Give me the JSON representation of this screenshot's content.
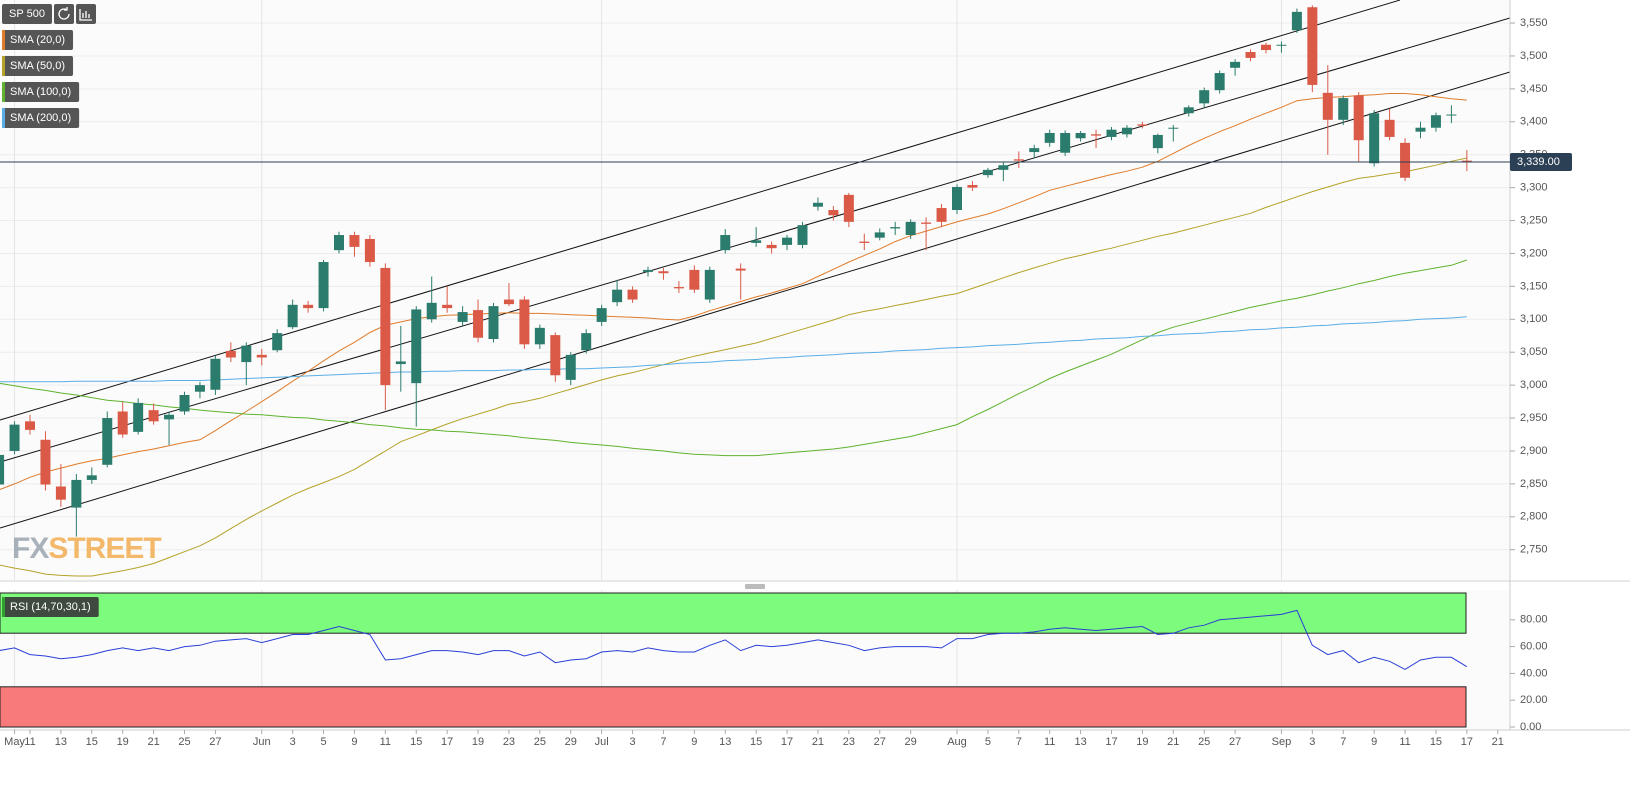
{
  "chart_data": [
    {
      "type": "candlestick",
      "title": "SP 500",
      "categories": [
        null,
        "May",
        "11",
        null,
        "13",
        null,
        "15",
        null,
        "19",
        null,
        "21",
        null,
        "25",
        null,
        "27",
        null,
        null,
        "Jun",
        null,
        "3",
        null,
        "5",
        null,
        "9",
        null,
        "11",
        null,
        "15",
        null,
        "17",
        null,
        "19",
        null,
        "23",
        null,
        "25",
        null,
        "29",
        null,
        "Jul",
        null,
        "3",
        null,
        "7",
        null,
        "9",
        null,
        "13",
        null,
        "15",
        null,
        "17",
        null,
        "21",
        null,
        "23",
        null,
        "27",
        null,
        "29",
        null,
        null,
        "Aug",
        null,
        "5",
        null,
        "7",
        null,
        "11",
        null,
        "13",
        null,
        "17",
        null,
        "19",
        null,
        "21",
        null,
        "25",
        null,
        "27",
        null,
        null,
        "Sep",
        null,
        "3",
        null,
        "7",
        null,
        "9",
        null,
        "11",
        null,
        "15",
        null,
        "17",
        null,
        "21"
      ],
      "open": [
        2849,
        2900,
        2945,
        2917,
        2846,
        2814,
        2856,
        2879,
        2960,
        2929,
        2962,
        2948,
        2960,
        2990,
        2993,
        3052,
        3035,
        3046,
        3053,
        3088,
        3122,
        3117,
        3205,
        3228,
        3222,
        3178,
        3032,
        3003,
        3100,
        3122,
        3096,
        3114,
        3070,
        3130,
        3130,
        3062,
        3076,
        3008,
        3053,
        3096,
        3126,
        3145,
        3172,
        3173,
        3149,
        3175,
        3130,
        3205,
        3177,
        3216,
        3213,
        3213,
        3213,
        3271,
        3266,
        3289,
        3218,
        3224,
        3238,
        3228,
        3247,
        3269,
        3266,
        3304,
        3319,
        3327,
        3343,
        3354,
        3368,
        3353,
        3375,
        3381,
        3377,
        3381,
        3396,
        3360,
        3390,
        3413,
        3428,
        3448,
        3482,
        3506,
        3517,
        3516,
        3539,
        3574,
        3444,
        3403,
        3440,
        3337,
        3403,
        3368,
        3385,
        3391,
        3410,
        3341,
        null,
        null
      ],
      "high": [
        2905,
        2945,
        2955,
        2930,
        2880,
        2865,
        2875,
        2960,
        2975,
        2980,
        2972,
        2960,
        2990,
        3005,
        3045,
        3065,
        3065,
        3055,
        3085,
        3130,
        3128,
        3190,
        3233,
        3233,
        3228,
        3185,
        3090,
        3120,
        3165,
        3150,
        3120,
        3130,
        3125,
        3155,
        3135,
        3092,
        3080,
        3050,
        3085,
        3122,
        3160,
        3150,
        3180,
        3178,
        3158,
        3182,
        3180,
        3237,
        3185,
        3240,
        3218,
        3228,
        3248,
        3285,
        3272,
        3292,
        3230,
        3238,
        3248,
        3252,
        3255,
        3275,
        3305,
        3310,
        3330,
        3338,
        3355,
        3365,
        3388,
        3387,
        3386,
        3388,
        3392,
        3395,
        3400,
        3382,
        3395,
        3425,
        3452,
        3478,
        3495,
        3510,
        3520,
        3522,
        3572,
        3577,
        3486,
        3440,
        3445,
        3418,
        3420,
        3375,
        3400,
        3414,
        3425,
        3357,
        null,
        null
      ],
      "low": [
        2840,
        2895,
        2925,
        2840,
        2815,
        2770,
        2850,
        2875,
        2920,
        2925,
        2940,
        2909,
        2955,
        2980,
        2985,
        3035,
        3000,
        3030,
        3050,
        3085,
        3110,
        3112,
        3200,
        3195,
        3180,
        2962,
        2990,
        2937,
        3095,
        3110,
        3090,
        3065,
        3065,
        3120,
        3055,
        3055,
        3005,
        3000,
        3048,
        3090,
        3120,
        3125,
        3165,
        3160,
        3140,
        3140,
        3125,
        3200,
        3130,
        3210,
        3200,
        3205,
        3208,
        3265,
        3250,
        3240,
        3205,
        3220,
        3228,
        3222,
        3205,
        3240,
        3260,
        3295,
        3315,
        3310,
        3330,
        3345,
        3362,
        3348,
        3370,
        3360,
        3372,
        3376,
        3390,
        3352,
        3370,
        3408,
        3422,
        3443,
        3470,
        3492,
        3504,
        3505,
        3535,
        3445,
        3350,
        3395,
        3340,
        3332,
        3372,
        3310,
        3375,
        3385,
        3398,
        3325,
        null,
        null
      ],
      "close": [
        2894,
        2940,
        2932,
        2849,
        2826,
        2856,
        2863,
        2950,
        2925,
        2973,
        2945,
        2955,
        2985,
        3000,
        3040,
        3042,
        3060,
        3042,
        3079,
        3122,
        3117,
        3187,
        3228,
        3210,
        3187,
        3000,
        3036,
        3115,
        3125,
        3117,
        3111,
        3072,
        3120,
        3123,
        3062,
        3087,
        3015,
        3046,
        3079,
        3117,
        3145,
        3130,
        3175,
        3170,
        3147,
        3145,
        3175,
        3228,
        3174,
        3220,
        3208,
        3224,
        3243,
        3277,
        3258,
        3248,
        3216,
        3232,
        3240,
        3248,
        3245,
        3248,
        3301,
        3300,
        3327,
        3334,
        3341,
        3360,
        3383,
        3383,
        3383,
        3379,
        3388,
        3391,
        3394,
        3380,
        3391,
        3422,
        3448,
        3474,
        3491,
        3497,
        3509,
        3517,
        3567,
        3456,
        3403,
        3436,
        3372,
        3413,
        3377,
        3315,
        3391,
        3410,
        3411,
        3339,
        null,
        null
      ],
      "up_color": "#2b7c6c",
      "down_color": "#da5a47",
      "series": [
        {
          "name": "SMA (20,0)",
          "color": "#e07b2a",
          "values": [
            2841,
            2850,
            2860,
            2868,
            2874,
            2880,
            2885,
            2889,
            2894,
            2899,
            2903,
            2908,
            2913,
            2917,
            2931,
            2946,
            2960,
            2975,
            2990,
            3006,
            3021,
            3037,
            3052,
            3065,
            3080,
            3091,
            3096,
            3101,
            3104,
            3106,
            3107,
            3108,
            3109,
            3110,
            3109,
            3109,
            3108,
            3107,
            3106,
            3105,
            3104,
            3103,
            3102,
            3100,
            3099,
            3105,
            3113,
            3120,
            3127,
            3134,
            3140,
            3147,
            3154,
            3165,
            3176,
            3187,
            3197,
            3207,
            3218,
            3227,
            3234,
            3241,
            3248,
            3254,
            3260,
            3268,
            3277,
            3286,
            3296,
            3302,
            3308,
            3314,
            3320,
            3325,
            3331,
            3340,
            3352,
            3364,
            3375,
            3385,
            3394,
            3404,
            3413,
            3422,
            3432,
            3435,
            3437,
            3438,
            3440,
            3441,
            3443,
            3443,
            3441,
            3438,
            3435,
            3433,
            null,
            null
          ]
        },
        {
          "name": "SMA (50,0)",
          "color": "#b5a22a",
          "values": [
            2727,
            2722,
            2718,
            2713,
            2711,
            2710,
            2710,
            2714,
            2718,
            2723,
            2729,
            2738,
            2747,
            2756,
            2768,
            2782,
            2796,
            2809,
            2821,
            2833,
            2843,
            2852,
            2861,
            2872,
            2886,
            2900,
            2914,
            2923,
            2932,
            2941,
            2949,
            2956,
            2963,
            2971,
            2975,
            2980,
            2987,
            2994,
            3001,
            3008,
            3014,
            3019,
            3025,
            3031,
            3038,
            3044,
            3049,
            3054,
            3059,
            3064,
            3071,
            3078,
            3085,
            3092,
            3099,
            3107,
            3112,
            3116,
            3121,
            3125,
            3130,
            3135,
            3139,
            3147,
            3155,
            3163,
            3171,
            3178,
            3185,
            3192,
            3197,
            3203,
            3208,
            3214,
            3220,
            3226,
            3231,
            3237,
            3243,
            3249,
            3255,
            3261,
            3270,
            3278,
            3286,
            3294,
            3301,
            3308,
            3314,
            3317,
            3321,
            3324,
            3329,
            3334,
            3340,
            3345,
            null,
            null
          ]
        },
        {
          "name": "SMA (100,0)",
          "color": "#5fb32e",
          "values": [
            3003,
            2999,
            2995,
            2992,
            2988,
            2985,
            2981,
            2977,
            2975,
            2972,
            2970,
            2967,
            2965,
            2962,
            2960,
            2958,
            2956,
            2955,
            2953,
            2951,
            2950,
            2947,
            2945,
            2943,
            2940,
            2938,
            2935,
            2933,
            2932,
            2930,
            2929,
            2927,
            2925,
            2923,
            2920,
            2918,
            2916,
            2913,
            2911,
            2909,
            2907,
            2904,
            2902,
            2900,
            2897,
            2895,
            2894,
            2893,
            2893,
            2893,
            2895,
            2897,
            2899,
            2901,
            2903,
            2906,
            2910,
            2914,
            2918,
            2922,
            2928,
            2934,
            2940,
            2952,
            2963,
            2975,
            2987,
            2998,
            3010,
            3020,
            3029,
            3038,
            3047,
            3058,
            3069,
            3080,
            3088,
            3094,
            3100,
            3106,
            3112,
            3118,
            3123,
            3128,
            3132,
            3137,
            3143,
            3148,
            3154,
            3159,
            3165,
            3170,
            3174,
            3178,
            3182,
            3190,
            null,
            null
          ]
        },
        {
          "name": "SMA (200,0)",
          "color": "#5aaee6",
          "values": [
            3005,
            3005,
            3005,
            3005,
            3005,
            3006,
            3006,
            3006,
            3006,
            3006,
            3006,
            3007,
            3007,
            3007,
            3008,
            3009,
            3010,
            3011,
            3012,
            3013,
            3014,
            3015,
            3016,
            3017,
            3018,
            3019,
            3020,
            3020,
            3021,
            3021,
            3022,
            3022,
            3022,
            3023,
            3023,
            3024,
            3024,
            3025,
            3025,
            3026,
            3027,
            3028,
            3030,
            3031,
            3033,
            3034,
            3035,
            3037,
            3038,
            3039,
            3041,
            3042,
            3044,
            3045,
            3046,
            3048,
            3049,
            3050,
            3052,
            3053,
            3054,
            3056,
            3057,
            3058,
            3060,
            3061,
            3062,
            3064,
            3065,
            3067,
            3068,
            3070,
            3071,
            3072,
            3074,
            3075,
            3077,
            3078,
            3079,
            3081,
            3082,
            3084,
            3085,
            3087,
            3088,
            3090,
            3091,
            3093,
            3094,
            3095,
            3097,
            3098,
            3100,
            3101,
            3102,
            3104,
            null,
            null
          ]
        }
      ],
      "last_price": {
        "value": 3339,
        "label": "3,339.00"
      },
      "ylim": [
        2704,
        3585
      ],
      "yticks": [
        {
          "value": 2750,
          "label": "2,750"
        },
        {
          "value": 2800,
          "label": "2,800"
        },
        {
          "value": 2850,
          "label": "2,850"
        },
        {
          "value": 2900,
          "label": "2,900"
        },
        {
          "value": 2950,
          "label": "2,950"
        },
        {
          "value": 3000,
          "label": "3,000"
        },
        {
          "value": 3050,
          "label": "3,050"
        },
        {
          "value": 3100,
          "label": "3,100"
        },
        {
          "value": 3150,
          "label": "3,150"
        },
        {
          "value": 3200,
          "label": "3,200"
        },
        {
          "value": 3250,
          "label": "3,250"
        },
        {
          "value": 3300,
          "label": "3,300"
        },
        {
          "value": 3350,
          "label": "3,350"
        },
        {
          "value": 3400,
          "label": "3,400"
        },
        {
          "value": 3450,
          "label": "3,450"
        },
        {
          "value": 3500,
          "label": "3,500"
        },
        {
          "value": 3550,
          "label": "3,550"
        }
      ],
      "grid": true
    },
    {
      "type": "line",
      "title": "RSI (14,70,30,1)",
      "color": "#2a3fd6",
      "values": [
        57,
        59,
        54,
        53,
        51,
        52,
        54,
        57,
        59,
        57,
        59,
        57,
        60,
        61,
        64,
        65,
        66,
        63,
        66,
        69,
        69,
        72,
        75,
        72,
        69,
        50,
        51,
        54,
        57,
        57,
        56,
        54,
        57,
        57,
        53,
        56,
        48,
        50,
        51,
        56,
        57,
        56,
        59,
        57,
        56,
        56,
        61,
        65,
        57,
        61,
        60,
        61,
        63,
        65,
        63,
        61,
        57,
        59,
        60,
        60,
        60,
        59,
        66,
        66,
        69,
        70,
        70,
        71,
        73,
        74,
        73,
        72,
        73,
        74,
        75,
        69,
        70,
        74,
        76,
        80,
        81,
        82,
        83,
        84,
        87,
        61,
        54,
        57,
        48,
        52,
        49,
        43,
        50,
        52,
        52,
        45,
        null,
        null
      ],
      "upper_band": 70,
      "lower_band": 30,
      "upper_color": "#7dfb7d",
      "lower_color": "#f87a7a",
      "ylim": [
        0,
        100
      ],
      "yticks": [
        {
          "value": 0,
          "label": "0.00"
        },
        {
          "value": 20,
          "label": "20.00"
        },
        {
          "value": 40,
          "label": "40.00"
        },
        {
          "value": 60,
          "label": "60.00"
        },
        {
          "value": 80,
          "label": "80.00"
        }
      ]
    }
  ],
  "watermark": {
    "prefix": "FX",
    "suffix": "STREET"
  }
}
